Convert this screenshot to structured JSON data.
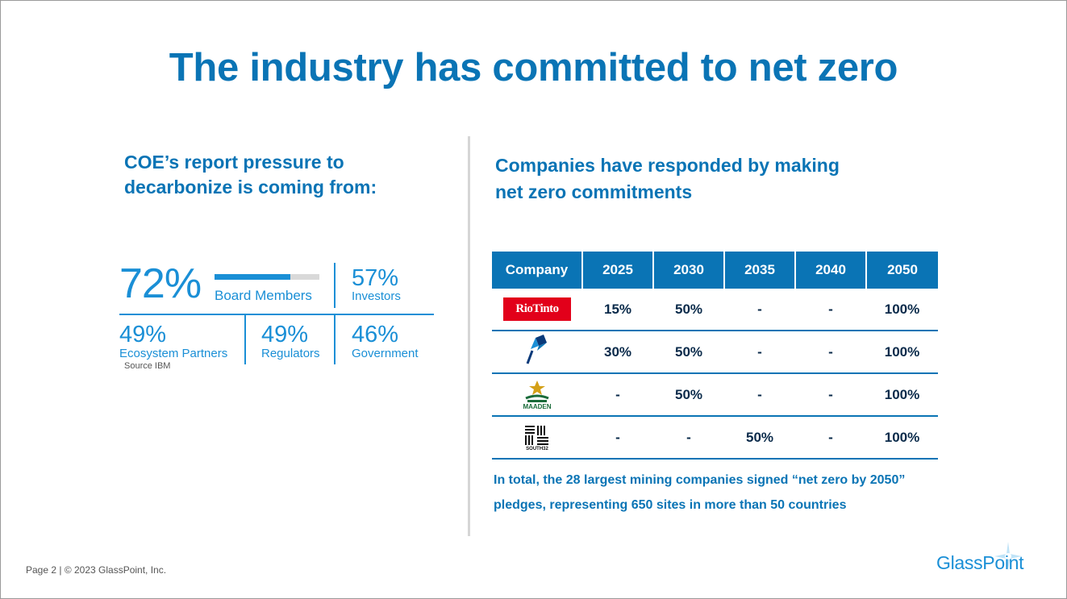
{
  "slide": {
    "title": "The industry has committed to net zero",
    "footer": "Page 2 | © 2023 GlassPoint, Inc.",
    "brand": "GlassPoint"
  },
  "left": {
    "heading_line1": "COE’s report pressure to",
    "heading_line2": "decarbonize is coming from:",
    "stats": [
      {
        "value": "72%",
        "label": "Board Members",
        "fraction": 0.72
      },
      {
        "value": "57%",
        "label": "Investors"
      },
      {
        "value": "49%",
        "label": "Ecosystem Partners"
      },
      {
        "value": "49%",
        "label": "Regulators"
      },
      {
        "value": "46%",
        "label": "Government"
      }
    ],
    "source": "Source IBM"
  },
  "right": {
    "heading_line1": "Companies have responded by making",
    "heading_line2": "net zero commitments",
    "table": {
      "headers": [
        "Company",
        "2025",
        "2030",
        "2035",
        "2040",
        "2050"
      ],
      "rows": [
        {
          "company": "RioTinto",
          "values": [
            "15%",
            "50%",
            "-",
            "-",
            "100%"
          ]
        },
        {
          "company": "Anglo American",
          "values": [
            "30%",
            "50%",
            "-",
            "-",
            "100%"
          ]
        },
        {
          "company": "MAADEN",
          "values": [
            "-",
            "50%",
            "-",
            "-",
            "100%"
          ]
        },
        {
          "company": "SOUTH32",
          "values": [
            "-",
            "-",
            "50%",
            "-",
            "100%"
          ]
        }
      ]
    },
    "note_line1": "In total, the 28 largest mining companies signed “net zero by 2050”",
    "note_line2": "pledges, representing 650 sites in more than 50 countries"
  },
  "colors": {
    "primary": "#0a74b5",
    "accent": "#1a8fd6",
    "rio_red": "#e2001a",
    "maaden_green": "#1a6b3a"
  }
}
